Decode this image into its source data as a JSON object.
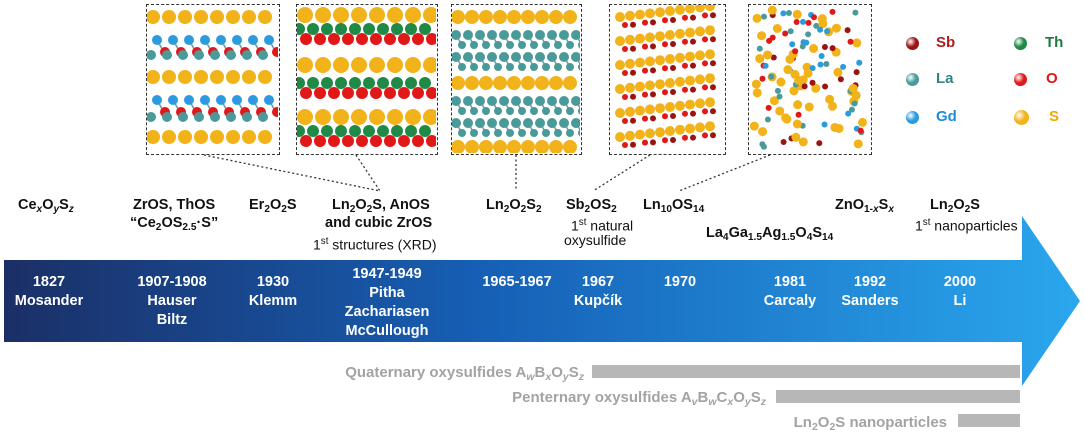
{
  "compositions": [
    {
      "id": "ce",
      "parts": [
        [
          "Ce",
          ""
        ],
        [
          "x",
          "sub-i"
        ],
        [
          "O",
          ""
        ],
        [
          "y",
          "sub-i"
        ],
        [
          "S",
          ""
        ],
        [
          "z",
          "sub-i"
        ]
      ]
    },
    {
      "id": "zros",
      "parts": [
        [
          "ZrOS, ThOS",
          ""
        ]
      ]
    },
    {
      "id": "ce2os",
      "parts": [
        [
          "“Ce",
          ""
        ],
        [
          "2",
          "sub"
        ],
        [
          "OS",
          ""
        ],
        [
          "2.5",
          "sub"
        ],
        [
          "·S”",
          ""
        ]
      ]
    },
    {
      "id": "er2o2s",
      "parts": [
        [
          "Er",
          ""
        ],
        [
          "2",
          "sub"
        ],
        [
          "O",
          ""
        ],
        [
          "2",
          "sub"
        ],
        [
          "S",
          ""
        ]
      ]
    },
    {
      "id": "ln2o2s-anos",
      "parts": [
        [
          "Ln",
          ""
        ],
        [
          "2",
          "sub"
        ],
        [
          "O",
          ""
        ],
        [
          "2",
          "sub"
        ],
        [
          "S, AnOS",
          ""
        ]
      ]
    },
    {
      "id": "cubic-zros",
      "parts": [
        [
          "and cubic ZrOS",
          ""
        ]
      ]
    },
    {
      "id": "ln2o2s2",
      "parts": [
        [
          "Ln",
          ""
        ],
        [
          "2",
          "sub"
        ],
        [
          "O",
          ""
        ],
        [
          "2",
          "sub"
        ],
        [
          "S",
          ""
        ],
        [
          "2",
          "sub"
        ]
      ]
    },
    {
      "id": "sb2os2",
      "parts": [
        [
          "Sb",
          ""
        ],
        [
          "2",
          "sub"
        ],
        [
          "OS",
          ""
        ],
        [
          "2",
          "sub"
        ]
      ]
    },
    {
      "id": "ln10os14",
      "parts": [
        [
          "Ln",
          ""
        ],
        [
          "10",
          "sub"
        ],
        [
          "OS",
          ""
        ],
        [
          "14",
          "sub"
        ]
      ]
    },
    {
      "id": "zno",
      "parts": [
        [
          "ZnO",
          ""
        ],
        [
          "1-",
          "sub"
        ],
        [
          "x",
          "sub-i"
        ],
        [
          "S",
          ""
        ],
        [
          "x",
          "sub-i"
        ]
      ]
    },
    {
      "id": "ln2o2s-nano",
      "parts": [
        [
          "Ln",
          ""
        ],
        [
          "2",
          "sub"
        ],
        [
          "O",
          ""
        ],
        [
          "2",
          "sub"
        ],
        [
          "S",
          ""
        ]
      ]
    },
    {
      "id": "la4ga",
      "parts": [
        [
          "La",
          ""
        ],
        [
          "4",
          "sub"
        ],
        [
          "Ga",
          ""
        ],
        [
          "1.5",
          "sub"
        ],
        [
          "Ag",
          ""
        ],
        [
          "1.5",
          "sub"
        ],
        [
          "O",
          ""
        ],
        [
          "4",
          "sub"
        ],
        [
          "S",
          ""
        ],
        [
          "14",
          "sub"
        ]
      ]
    }
  ],
  "notes": [
    {
      "id": "first-structures",
      "parts": [
        [
          "1",
          ""
        ],
        [
          "st",
          "sup"
        ],
        [
          " structures (XRD)",
          ""
        ]
      ]
    },
    {
      "id": "first-natural",
      "parts": [
        [
          "1",
          ""
        ],
        [
          "st",
          "sup"
        ],
        [
          " natural",
          ""
        ]
      ]
    },
    {
      "id": "oxysulfide",
      "parts": [
        [
          "oxysulfide",
          ""
        ]
      ]
    },
    {
      "id": "first-nano",
      "parts": [
        [
          "1",
          ""
        ],
        [
          "st",
          "sup"
        ],
        [
          " nanoparticles",
          ""
        ]
      ]
    }
  ],
  "timeline": [
    {
      "year": "1827",
      "names": [
        "Mosander"
      ]
    },
    {
      "year": "1907-1908",
      "names": [
        "Hauser",
        "Biltz"
      ]
    },
    {
      "year": "1930",
      "names": [
        "Klemm"
      ]
    },
    {
      "year": "1947-1949",
      "names": [
        "Pitha",
        "Zachariasen",
        "McCullough"
      ]
    },
    {
      "year": "1965-1967",
      "names": []
    },
    {
      "year": "1967",
      "names": [
        "Kupčík"
      ]
    },
    {
      "year": "1970",
      "names": []
    },
    {
      "year": "1981",
      "names": [
        "Carcaly"
      ]
    },
    {
      "year": "1992",
      "names": [
        "Sanders"
      ]
    },
    {
      "year": "2000",
      "names": [
        "Li"
      ]
    }
  ],
  "legend": [
    {
      "symbol": "Sb",
      "color": "#9b1414",
      "text_color": "#b01e1e"
    },
    {
      "symbol": "Th",
      "color": "#1e8a45",
      "text_color": "#1c7a3e"
    },
    {
      "symbol": "La",
      "color": "#4a9a9a",
      "text_color": "#2f8585"
    },
    {
      "symbol": "O",
      "color": "#e01818",
      "text_color": "#e01818"
    },
    {
      "symbol": "Gd",
      "color": "#2b9be0",
      "text_color": "#1e8fd6"
    },
    {
      "symbol": "S",
      "color": "#f2b21a",
      "text_color": "#f0a800"
    }
  ],
  "bars": [
    {
      "id": "quaternary",
      "parts": [
        [
          "Quaternary oxysulfides A",
          ""
        ],
        [
          "w",
          "sub-i"
        ],
        [
          "B",
          ""
        ],
        [
          "x",
          "sub-i"
        ],
        [
          "O",
          ""
        ],
        [
          "y",
          "sub-i"
        ],
        [
          "S",
          ""
        ],
        [
          "z",
          "sub-i"
        ]
      ]
    },
    {
      "id": "penternary",
      "parts": [
        [
          "Penternary oxysulfides A",
          ""
        ],
        [
          "v",
          "sub-i"
        ],
        [
          "B",
          ""
        ],
        [
          "w",
          "sub-i"
        ],
        [
          "C",
          ""
        ],
        [
          "x",
          "sub-i"
        ],
        [
          "O",
          ""
        ],
        [
          "y",
          "sub-i"
        ],
        [
          "S",
          ""
        ],
        [
          "z",
          "sub-i"
        ]
      ]
    },
    {
      "id": "nanoparticles",
      "parts": [
        [
          "Ln",
          ""
        ],
        [
          "2",
          "sub"
        ],
        [
          "O",
          ""
        ],
        [
          "2",
          "sub"
        ],
        [
          "S nanoparticles",
          ""
        ]
      ]
    }
  ],
  "colors": {
    "arrow_dark": "#1b2f66",
    "arrow_light": "#2aa7ee",
    "bar": "#b7b7b7",
    "bar_text": "#a3a3a3"
  },
  "panels": [
    {
      "name": "structure-panel-zros",
      "pattern": "layered"
    },
    {
      "name": "structure-panel-ln2o2s",
      "pattern": "layered-dense"
    },
    {
      "name": "structure-panel-ln2o2s2",
      "pattern": "slabs"
    },
    {
      "name": "structure-panel-sb2os2",
      "pattern": "chains"
    },
    {
      "name": "structure-panel-ln10os14",
      "pattern": "disordered"
    }
  ]
}
